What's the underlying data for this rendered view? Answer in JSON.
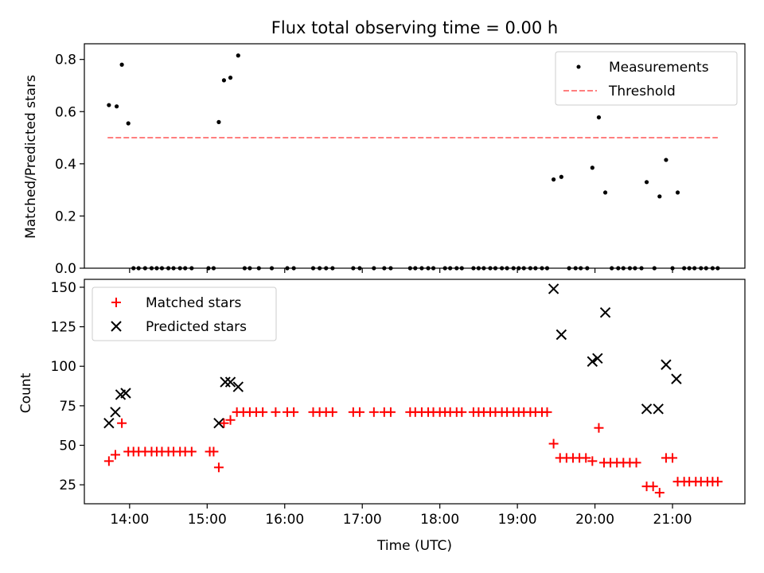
{
  "figure": {
    "title": "Flux total observing time = 0.00 h"
  },
  "chart_data": [
    {
      "type": "scatter",
      "name": "top",
      "title": "Flux total observing time = 0.00 h",
      "xlabel": "",
      "ylabel": "Matched/Predicted stars",
      "xlim": [
        "13:25",
        "21:56"
      ],
      "ylim": [
        0,
        0.86
      ],
      "yticks": [
        0.0,
        0.2,
        0.4,
        0.6,
        0.8
      ],
      "ytick_labels": [
        "0.0",
        "0.2",
        "0.4",
        "0.6",
        "0.8"
      ],
      "xticks": [
        "14:00",
        "15:00",
        "16:00",
        "17:00",
        "18:00",
        "19:00",
        "20:00",
        "21:00"
      ],
      "grid": false,
      "legend_position": "upper right",
      "series": [
        {
          "name": "Measurements",
          "marker": "dot",
          "color": "#000000",
          "points": [
            [
              "13:44",
              0.625
            ],
            [
              "13:50",
              0.62
            ],
            [
              "13:54",
              0.78
            ],
            [
              "13:59",
              0.555
            ],
            [
              "14:03",
              0.0
            ],
            [
              "14:07",
              0.0
            ],
            [
              "14:12",
              0.0
            ],
            [
              "14:17",
              0.0
            ],
            [
              "14:21",
              0.0
            ],
            [
              "14:25",
              0.0
            ],
            [
              "14:30",
              0.0
            ],
            [
              "14:34",
              0.0
            ],
            [
              "14:39",
              0.0
            ],
            [
              "14:43",
              0.0
            ],
            [
              "14:48",
              0.0
            ],
            [
              "15:01",
              0.0
            ],
            [
              "15:05",
              0.0
            ],
            [
              "15:09",
              0.56
            ],
            [
              "15:13",
              0.72
            ],
            [
              "15:18",
              0.73
            ],
            [
              "15:24",
              0.815
            ],
            [
              "15:29",
              0.0
            ],
            [
              "15:33",
              0.0
            ],
            [
              "15:40",
              0.0
            ],
            [
              "15:50",
              0.0
            ],
            [
              "16:02",
              0.0
            ],
            [
              "16:07",
              0.0
            ],
            [
              "16:22",
              0.0
            ],
            [
              "16:27",
              0.0
            ],
            [
              "16:32",
              0.0
            ],
            [
              "16:37",
              0.0
            ],
            [
              "16:53",
              0.0
            ],
            [
              "16:58",
              0.0
            ],
            [
              "17:09",
              0.0
            ],
            [
              "17:17",
              0.0
            ],
            [
              "17:22",
              0.0
            ],
            [
              "17:37",
              0.0
            ],
            [
              "17:41",
              0.0
            ],
            [
              "17:46",
              0.0
            ],
            [
              "17:51",
              0.0
            ],
            [
              "17:55",
              0.0
            ],
            [
              "18:04",
              0.0
            ],
            [
              "18:08",
              0.0
            ],
            [
              "18:13",
              0.0
            ],
            [
              "18:17",
              0.0
            ],
            [
              "18:26",
              0.0
            ],
            [
              "18:30",
              0.0
            ],
            [
              "18:34",
              0.0
            ],
            [
              "18:39",
              0.0
            ],
            [
              "18:43",
              0.0
            ],
            [
              "18:48",
              0.0
            ],
            [
              "18:52",
              0.0
            ],
            [
              "18:57",
              0.0
            ],
            [
              "19:01",
              0.0
            ],
            [
              "19:05",
              0.0
            ],
            [
              "19:10",
              0.0
            ],
            [
              "19:14",
              0.0
            ],
            [
              "19:19",
              0.0
            ],
            [
              "19:23",
              0.0
            ],
            [
              "19:28",
              0.34
            ],
            [
              "19:34",
              0.35
            ],
            [
              "19:40",
              0.0
            ],
            [
              "19:45",
              0.0
            ],
            [
              "19:49",
              0.0
            ],
            [
              "19:54",
              0.0
            ],
            [
              "19:58",
              0.385
            ],
            [
              "20:03",
              0.578
            ],
            [
              "20:08",
              0.29
            ],
            [
              "20:13",
              0.0
            ],
            [
              "20:18",
              0.0
            ],
            [
              "20:22",
              0.0
            ],
            [
              "20:27",
              0.0
            ],
            [
              "20:31",
              0.0
            ],
            [
              "20:36",
              0.0
            ],
            [
              "20:40",
              0.33
            ],
            [
              "20:46",
              0.0
            ],
            [
              "20:50",
              0.275
            ],
            [
              "20:55",
              0.415
            ],
            [
              "21:00",
              0.0
            ],
            [
              "21:04",
              0.29
            ],
            [
              "21:09",
              0.0
            ],
            [
              "21:13",
              0.0
            ],
            [
              "21:17",
              0.0
            ],
            [
              "21:22",
              0.0
            ],
            [
              "21:26",
              0.0
            ],
            [
              "21:31",
              0.0
            ],
            [
              "21:35",
              0.0
            ]
          ]
        },
        {
          "name": "Threshold",
          "marker": "dashed-line",
          "color": "#ff7f7f",
          "points": [
            [
              "13:43",
              0.5
            ],
            [
              "21:35",
              0.5
            ]
          ]
        }
      ]
    },
    {
      "type": "scatter",
      "name": "bottom",
      "title": "",
      "xlabel": "Time (UTC)",
      "ylabel": "Count",
      "xlim": [
        "13:25",
        "21:56"
      ],
      "ylim": [
        13,
        155
      ],
      "yticks": [
        25,
        50,
        75,
        100,
        125,
        150
      ],
      "ytick_labels": [
        "25",
        "50",
        "75",
        "100",
        "125",
        "150"
      ],
      "xticks": [
        "14:00",
        "15:00",
        "16:00",
        "17:00",
        "18:00",
        "19:00",
        "20:00",
        "21:00"
      ],
      "xtick_labels": [
        "14:00",
        "15:00",
        "16:00",
        "17:00",
        "18:00",
        "19:00",
        "20:00",
        "21:00"
      ],
      "grid": false,
      "legend_position": "upper left",
      "series": [
        {
          "name": "Matched stars",
          "marker": "plus",
          "color": "#ff0000",
          "points": [
            [
              "13:44",
              40
            ],
            [
              "13:49",
              44
            ],
            [
              "13:54",
              64
            ],
            [
              "13:59",
              46
            ],
            [
              "14:03",
              46
            ],
            [
              "14:07",
              46
            ],
            [
              "14:12",
              46
            ],
            [
              "14:17",
              46
            ],
            [
              "14:21",
              46
            ],
            [
              "14:25",
              46
            ],
            [
              "14:30",
              46
            ],
            [
              "14:34",
              46
            ],
            [
              "14:39",
              46
            ],
            [
              "14:43",
              46
            ],
            [
              "14:48",
              46
            ],
            [
              "15:02",
              46
            ],
            [
              "15:05",
              46
            ],
            [
              "15:09",
              36
            ],
            [
              "15:13",
              64
            ],
            [
              "15:18",
              66
            ],
            [
              "15:23",
              71
            ],
            [
              "15:28",
              71
            ],
            [
              "15:33",
              71
            ],
            [
              "15:38",
              71
            ],
            [
              "15:43",
              71
            ],
            [
              "15:53",
              71
            ],
            [
              "16:02",
              71
            ],
            [
              "16:07",
              71
            ],
            [
              "16:22",
              71
            ],
            [
              "16:27",
              71
            ],
            [
              "16:32",
              71
            ],
            [
              "16:37",
              71
            ],
            [
              "16:53",
              71
            ],
            [
              "16:58",
              71
            ],
            [
              "17:09",
              71
            ],
            [
              "17:17",
              71
            ],
            [
              "17:22",
              71
            ],
            [
              "17:37",
              71
            ],
            [
              "17:41",
              71
            ],
            [
              "17:46",
              71
            ],
            [
              "17:51",
              71
            ],
            [
              "17:55",
              71
            ],
            [
              "18:00",
              71
            ],
            [
              "18:04",
              71
            ],
            [
              "18:08",
              71
            ],
            [
              "18:13",
              71
            ],
            [
              "18:17",
              71
            ],
            [
              "18:26",
              71
            ],
            [
              "18:30",
              71
            ],
            [
              "18:34",
              71
            ],
            [
              "18:39",
              71
            ],
            [
              "18:43",
              71
            ],
            [
              "18:48",
              71
            ],
            [
              "18:52",
              71
            ],
            [
              "18:57",
              71
            ],
            [
              "19:01",
              71
            ],
            [
              "19:05",
              71
            ],
            [
              "19:10",
              71
            ],
            [
              "19:14",
              71
            ],
            [
              "19:19",
              71
            ],
            [
              "19:23",
              71
            ],
            [
              "19:28",
              51
            ],
            [
              "19:33",
              42
            ],
            [
              "19:38",
              42
            ],
            [
              "19:43",
              42
            ],
            [
              "19:48",
              42
            ],
            [
              "19:53",
              42
            ],
            [
              "19:58",
              40
            ],
            [
              "20:03",
              61
            ],
            [
              "20:07",
              39
            ],
            [
              "20:12",
              39
            ],
            [
              "20:17",
              39
            ],
            [
              "20:22",
              39
            ],
            [
              "20:27",
              39
            ],
            [
              "20:32",
              39
            ],
            [
              "20:40",
              24
            ],
            [
              "20:45",
              24
            ],
            [
              "20:50",
              20
            ],
            [
              "20:55",
              42
            ],
            [
              "21:00",
              42
            ],
            [
              "21:04",
              27
            ],
            [
              "21:09",
              27
            ],
            [
              "21:13",
              27
            ],
            [
              "21:18",
              27
            ],
            [
              "21:22",
              27
            ],
            [
              "21:27",
              27
            ],
            [
              "21:31",
              27
            ],
            [
              "21:35",
              27
            ]
          ]
        },
        {
          "name": "Predicted stars",
          "marker": "x",
          "color": "#000000",
          "points": [
            [
              "13:44",
              64
            ],
            [
              "13:49",
              71
            ],
            [
              "13:53",
              82
            ],
            [
              "13:57",
              83
            ],
            [
              "15:09",
              64
            ],
            [
              "15:14",
              90
            ],
            [
              "15:18",
              90
            ],
            [
              "15:24",
              87
            ],
            [
              "19:28",
              149
            ],
            [
              "19:34",
              120
            ],
            [
              "19:58",
              103
            ],
            [
              "20:02",
              105
            ],
            [
              "20:08",
              134
            ],
            [
              "20:40",
              73
            ],
            [
              "20:49",
              73
            ],
            [
              "20:55",
              101
            ],
            [
              "21:03",
              92
            ]
          ]
        }
      ]
    }
  ]
}
